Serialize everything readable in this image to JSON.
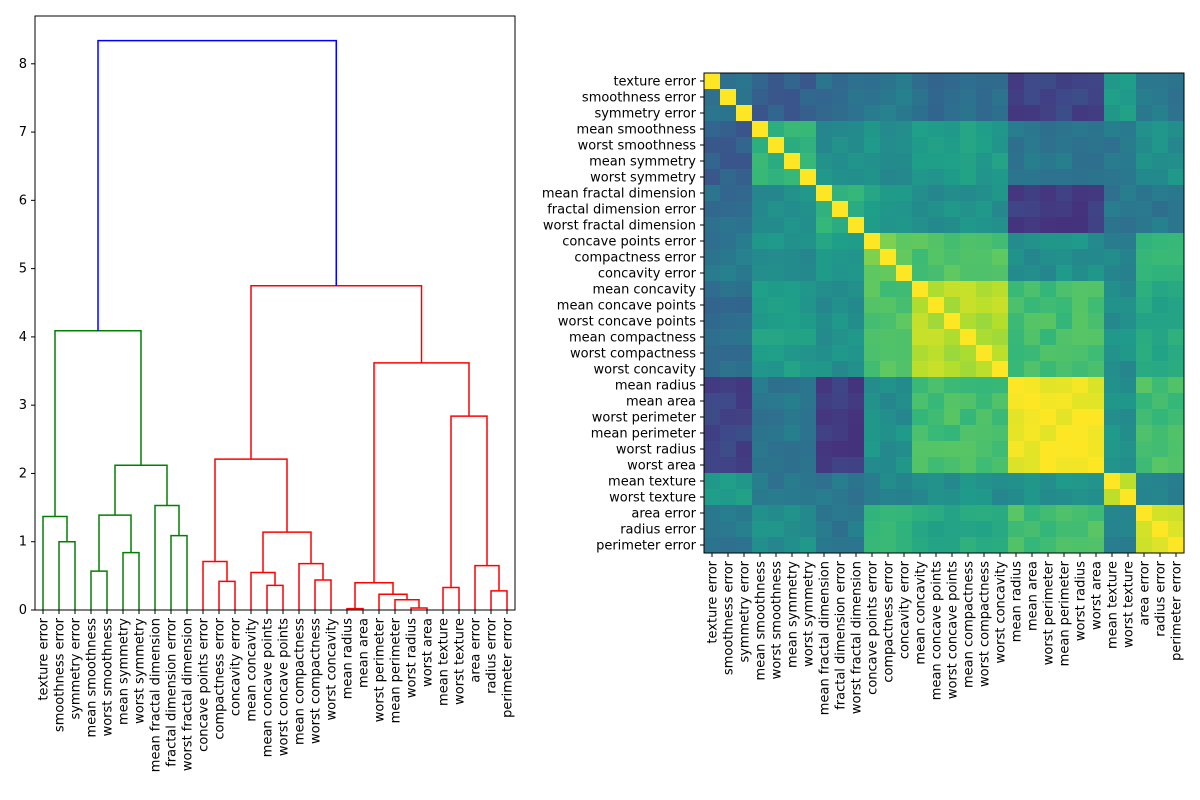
{
  "chart_data": [
    {
      "type": "dendrogram",
      "ylim": [
        0,
        8.7
      ],
      "yticks": [
        0,
        1,
        2,
        3,
        4,
        5,
        6,
        7,
        8
      ],
      "leaves": [
        "texture error",
        "smoothness error",
        "symmetry error",
        "mean smoothness",
        "worst smoothness",
        "mean symmetry",
        "worst symmetry",
        "mean fractal dimension",
        "fractal dimension error",
        "worst fractal dimension",
        "concave points error",
        "compactness error",
        "concavity error",
        "mean concavity",
        "mean concave points",
        "worst concave points",
        "mean compactness",
        "worst compactness",
        "worst concavity",
        "mean radius",
        "mean area",
        "worst perimeter",
        "mean perimeter",
        "worst radius",
        "worst area",
        "mean texture",
        "worst texture",
        "area error",
        "radius error",
        "perimeter error"
      ],
      "colors": {
        "g": "#008000",
        "r": "#ff0000",
        "b": "#0000ff"
      },
      "links": [
        [
          1,
          2,
          1.0,
          "g"
        ],
        [
          0,
          30,
          1.37,
          "g"
        ],
        [
          3,
          4,
          0.57,
          "g"
        ],
        [
          5,
          6,
          0.84,
          "g"
        ],
        [
          32,
          33,
          1.39,
          "g"
        ],
        [
          8,
          9,
          1.09,
          "g"
        ],
        [
          7,
          35,
          1.53,
          "g"
        ],
        [
          34,
          36,
          2.12,
          "g"
        ],
        [
          31,
          37,
          4.09,
          "g"
        ],
        [
          11,
          12,
          0.42,
          "r"
        ],
        [
          10,
          39,
          0.71,
          "r"
        ],
        [
          14,
          15,
          0.36,
          "r"
        ],
        [
          13,
          41,
          0.55,
          "r"
        ],
        [
          17,
          18,
          0.44,
          "r"
        ],
        [
          16,
          43,
          0.68,
          "r"
        ],
        [
          42,
          44,
          1.14,
          "r"
        ],
        [
          40,
          45,
          2.21,
          "r"
        ],
        [
          19,
          20,
          0.02,
          "r"
        ],
        [
          23,
          24,
          0.03,
          "r"
        ],
        [
          22,
          48,
          0.15,
          "r"
        ],
        [
          21,
          49,
          0.23,
          "r"
        ],
        [
          47,
          50,
          0.4,
          "r"
        ],
        [
          25,
          26,
          0.33,
          "r"
        ],
        [
          28,
          29,
          0.28,
          "r"
        ],
        [
          27,
          53,
          0.65,
          "r"
        ],
        [
          52,
          54,
          2.84,
          "r"
        ],
        [
          51,
          55,
          3.62,
          "r"
        ],
        [
          46,
          56,
          4.75,
          "r"
        ],
        [
          38,
          57,
          8.34,
          "b"
        ]
      ]
    },
    {
      "type": "heatmap",
      "labels": [
        "texture error",
        "smoothness error",
        "symmetry error",
        "mean smoothness",
        "worst smoothness",
        "mean symmetry",
        "worst symmetry",
        "mean fractal dimension",
        "fractal dimension error",
        "worst fractal dimension",
        "concave points error",
        "compactness error",
        "concavity error",
        "mean concavity",
        "mean concave points",
        "worst concave points",
        "mean compactness",
        "worst compactness",
        "worst concavity",
        "mean radius",
        "mean area",
        "worst perimeter",
        "mean perimeter",
        "worst radius",
        "worst area",
        "mean texture",
        "worst texture",
        "area error",
        "radius error",
        "perimeter error"
      ],
      "groups": [
        [
          0,
          2
        ],
        [
          3,
          6
        ],
        [
          7,
          9
        ],
        [
          10,
          12
        ],
        [
          13,
          18
        ],
        [
          19,
          24
        ],
        [
          25,
          26
        ],
        [
          27,
          29
        ]
      ],
      "block_values": [
        [
          0.4,
          0.3,
          0.35,
          0.4,
          0.35,
          0.2,
          0.55,
          0.4
        ],
        [
          0.3,
          0.65,
          0.5,
          0.5,
          0.55,
          0.4,
          0.4,
          0.5
        ],
        [
          0.35,
          0.5,
          0.65,
          0.55,
          0.5,
          0.18,
          0.4,
          0.4
        ],
        [
          0.4,
          0.5,
          0.55,
          0.78,
          0.72,
          0.5,
          0.45,
          0.65
        ],
        [
          0.35,
          0.55,
          0.5,
          0.72,
          0.88,
          0.7,
          0.5,
          0.6
        ],
        [
          0.2,
          0.4,
          0.18,
          0.5,
          0.7,
          0.98,
          0.5,
          0.7
        ],
        [
          0.55,
          0.4,
          0.4,
          0.45,
          0.5,
          0.5,
          0.93,
          0.45
        ],
        [
          0.4,
          0.5,
          0.4,
          0.65,
          0.6,
          0.7,
          0.45,
          0.95
        ]
      ],
      "colormap": "viridis",
      "diagonal": 1.0
    }
  ]
}
